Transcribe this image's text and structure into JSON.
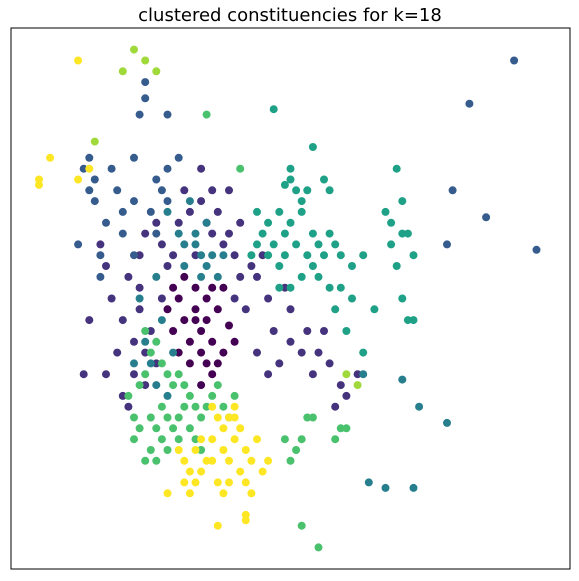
{
  "chart_data": {
    "type": "scatter",
    "title": "clustered constituencies for k=18",
    "xlabel": "",
    "ylabel": "",
    "xlim": [
      0,
      100
    ],
    "ylim": [
      0,
      100
    ],
    "grid": false,
    "axis_ticks": false,
    "palette": [
      "#440154",
      "#46337e",
      "#365c8d",
      "#277f8e",
      "#1fa187",
      "#4ac16d",
      "#9fda3a",
      "#fde725"
    ],
    "series": [
      {
        "color": "#440154",
        "points": [
          [
            30,
            50
          ],
          [
            31,
            46
          ],
          [
            33,
            48
          ],
          [
            34,
            44
          ],
          [
            35,
            46
          ],
          [
            36,
            42
          ],
          [
            32,
            42
          ],
          [
            29,
            44
          ],
          [
            37,
            48
          ],
          [
            38,
            40
          ],
          [
            39,
            45
          ],
          [
            35,
            50
          ],
          [
            33,
            52
          ],
          [
            31,
            54
          ],
          [
            36,
            52
          ],
          [
            34,
            40
          ],
          [
            32,
            38
          ],
          [
            30,
            40
          ],
          [
            28,
            48
          ],
          [
            38,
            52
          ],
          [
            36,
            36
          ],
          [
            34,
            34
          ],
          [
            40,
            42
          ],
          [
            37,
            38
          ],
          [
            33,
            46
          ],
          [
            29,
            52
          ],
          [
            35,
            38
          ]
        ]
      },
      {
        "color": "#46337e",
        "points": [
          [
            20,
            46
          ],
          [
            22,
            42
          ],
          [
            23,
            48
          ],
          [
            25,
            44
          ],
          [
            24,
            40
          ],
          [
            26,
            38
          ],
          [
            24,
            34
          ],
          [
            22,
            36
          ],
          [
            18,
            50
          ],
          [
            17,
            56
          ],
          [
            16,
            60
          ],
          [
            21,
            54
          ],
          [
            23,
            52
          ],
          [
            27,
            60
          ],
          [
            29,
            58
          ],
          [
            30,
            64
          ],
          [
            32,
            66
          ],
          [
            34,
            68
          ],
          [
            36,
            70
          ],
          [
            37,
            66
          ],
          [
            39,
            62
          ],
          [
            40,
            58
          ],
          [
            41,
            54
          ],
          [
            38,
            60
          ],
          [
            36,
            62
          ],
          [
            31,
            70
          ],
          [
            34,
            74
          ],
          [
            35,
            64
          ],
          [
            39,
            70
          ],
          [
            40,
            50
          ],
          [
            42,
            48
          ],
          [
            44,
            40
          ],
          [
            46,
            36
          ],
          [
            47,
            44
          ],
          [
            48,
            38
          ],
          [
            50,
            42
          ],
          [
            52,
            40
          ],
          [
            54,
            36
          ],
          [
            55,
            40
          ],
          [
            57,
            38
          ],
          [
            59,
            34
          ],
          [
            60,
            32
          ],
          [
            62,
            36
          ],
          [
            53,
            44
          ],
          [
            56,
            44
          ],
          [
            58,
            30
          ],
          [
            50,
            48
          ],
          [
            44,
            54
          ],
          [
            14,
            46
          ],
          [
            13,
            36
          ],
          [
            17,
            36
          ],
          [
            20,
            32
          ],
          [
            19,
            40
          ],
          [
            23,
            58
          ],
          [
            26,
            64
          ],
          [
            28,
            56
          ],
          [
            33,
            58
          ],
          [
            41,
            64
          ],
          [
            43,
            56
          ],
          [
            46,
            50
          ],
          [
            49,
            52
          ],
          [
            45,
            58
          ],
          [
            24,
            62
          ],
          [
            27,
            50
          ],
          [
            21,
            30
          ]
        ]
      },
      {
        "color": "#365c8d",
        "points": [
          [
            90,
            94
          ],
          [
            82,
            86
          ],
          [
            79,
            70
          ],
          [
            85,
            65
          ],
          [
            78,
            60
          ],
          [
            94,
            59
          ],
          [
            24,
            90
          ],
          [
            24,
            87
          ],
          [
            28,
            84
          ],
          [
            23,
            84
          ],
          [
            22,
            76
          ],
          [
            26,
            72
          ],
          [
            28,
            74
          ],
          [
            30,
            76
          ],
          [
            27,
            70
          ],
          [
            22,
            68
          ],
          [
            20,
            66
          ],
          [
            25,
            66
          ],
          [
            26,
            62
          ],
          [
            20,
            62
          ],
          [
            28,
            68
          ],
          [
            14,
            70
          ],
          [
            15,
            72
          ],
          [
            16,
            58
          ],
          [
            17,
            64
          ],
          [
            15,
            68
          ],
          [
            14,
            76
          ],
          [
            13,
            74
          ],
          [
            18,
            74
          ],
          [
            19,
            70
          ],
          [
            12,
            60
          ],
          [
            22,
            58
          ],
          [
            16,
            54
          ]
        ]
      },
      {
        "color": "#277f8e",
        "points": [
          [
            32,
            68
          ],
          [
            33,
            62
          ],
          [
            34,
            58
          ],
          [
            35,
            56
          ],
          [
            37,
            54
          ],
          [
            34,
            54
          ],
          [
            30,
            62
          ],
          [
            28,
            66
          ],
          [
            31,
            60
          ],
          [
            26,
            54
          ],
          [
            27,
            46
          ],
          [
            29,
            40
          ],
          [
            24,
            42
          ],
          [
            25,
            38
          ],
          [
            22,
            38
          ],
          [
            26,
            34
          ],
          [
            28,
            32
          ],
          [
            35,
            64
          ],
          [
            38,
            58
          ],
          [
            36,
            58
          ],
          [
            33,
            60
          ],
          [
            31,
            56
          ],
          [
            23,
            50
          ],
          [
            73,
            30
          ],
          [
            78,
            27
          ],
          [
            64,
            16
          ],
          [
            67,
            15
          ],
          [
            72,
            15
          ],
          [
            70,
            35
          ],
          [
            63,
            36
          ]
        ]
      },
      {
        "color": "#1fa187",
        "points": [
          [
            47,
            85
          ],
          [
            49,
            71
          ],
          [
            50,
            74
          ],
          [
            51,
            70
          ],
          [
            52,
            68
          ],
          [
            52,
            66
          ],
          [
            50,
            64
          ],
          [
            49,
            62
          ],
          [
            51,
            60
          ],
          [
            53,
            58
          ],
          [
            54,
            62
          ],
          [
            55,
            60
          ],
          [
            56,
            58
          ],
          [
            57,
            62
          ],
          [
            58,
            60
          ],
          [
            54,
            56
          ],
          [
            55,
            54
          ],
          [
            52,
            54
          ],
          [
            50,
            52
          ],
          [
            48,
            56
          ],
          [
            49,
            58
          ],
          [
            47,
            60
          ],
          [
            45,
            62
          ],
          [
            44,
            66
          ],
          [
            48,
            52
          ],
          [
            46,
            58
          ],
          [
            56,
            72
          ],
          [
            57,
            70
          ],
          [
            54,
            78
          ],
          [
            53,
            70
          ],
          [
            59,
            58
          ],
          [
            61,
            56
          ],
          [
            63,
            58
          ],
          [
            68,
            64
          ],
          [
            69,
            74
          ],
          [
            70,
            68
          ],
          [
            70,
            62
          ],
          [
            69,
            56
          ],
          [
            70,
            50
          ],
          [
            71,
            46
          ],
          [
            72,
            46
          ],
          [
            68,
            60
          ],
          [
            71,
            62
          ],
          [
            72,
            58
          ],
          [
            67,
            66
          ],
          [
            65,
            48
          ],
          [
            63,
            40
          ],
          [
            61,
            50
          ],
          [
            60,
            44
          ],
          [
            58,
            48
          ],
          [
            59,
            52
          ],
          [
            57,
            52
          ],
          [
            50,
            72
          ],
          [
            44,
            60
          ],
          [
            43,
            58
          ],
          [
            46,
            64
          ],
          [
            48,
            66
          ]
        ]
      },
      {
        "color": "#4ac16d",
        "points": [
          [
            35,
            84
          ],
          [
            41,
            74
          ],
          [
            24,
            44
          ],
          [
            25,
            40
          ],
          [
            26,
            42
          ],
          [
            27,
            38
          ],
          [
            28,
            36
          ],
          [
            29,
            34
          ],
          [
            30,
            36
          ],
          [
            31,
            34
          ],
          [
            32,
            32
          ],
          [
            33,
            30
          ],
          [
            34,
            28
          ],
          [
            35,
            30
          ],
          [
            36,
            32
          ],
          [
            37,
            34
          ],
          [
            38,
            30
          ],
          [
            39,
            28
          ],
          [
            40,
            32
          ],
          [
            24,
            36
          ],
          [
            23,
            34
          ],
          [
            22,
            28
          ],
          [
            23,
            26
          ],
          [
            25,
            28
          ],
          [
            26,
            26
          ],
          [
            27,
            24
          ],
          [
            28,
            22
          ],
          [
            29,
            26
          ],
          [
            30,
            28
          ],
          [
            31,
            30
          ],
          [
            32,
            26
          ],
          [
            26,
            20
          ],
          [
            25,
            22
          ],
          [
            24,
            20
          ],
          [
            27,
            30
          ],
          [
            28,
            28
          ],
          [
            21,
            32
          ],
          [
            22,
            24
          ],
          [
            30,
            24
          ],
          [
            33,
            24
          ],
          [
            34,
            22
          ],
          [
            53,
            28
          ],
          [
            54,
            28
          ],
          [
            58,
            24
          ],
          [
            59,
            26
          ],
          [
            52,
            24
          ],
          [
            51,
            22
          ],
          [
            60,
            26
          ],
          [
            50,
            20
          ],
          [
            49,
            24
          ],
          [
            52,
            8
          ],
          [
            55,
            4
          ]
        ]
      },
      {
        "color": "#9fda3a",
        "points": [
          [
            22,
            96
          ],
          [
            24,
            94
          ],
          [
            20,
            92
          ],
          [
            26,
            92
          ],
          [
            15,
            79
          ],
          [
            60,
            36
          ],
          [
            62,
            34
          ]
        ]
      },
      {
        "color": "#fde725",
        "points": [
          [
            12,
            94
          ],
          [
            7,
            76
          ],
          [
            12,
            72
          ],
          [
            5,
            71
          ],
          [
            5,
            72
          ],
          [
            14,
            74
          ],
          [
            36,
            30
          ],
          [
            37,
            28
          ],
          [
            38,
            26
          ],
          [
            39,
            28
          ],
          [
            40,
            30
          ],
          [
            41,
            26
          ],
          [
            42,
            22
          ],
          [
            43,
            20
          ],
          [
            44,
            24
          ],
          [
            45,
            18
          ],
          [
            46,
            20
          ],
          [
            39,
            20
          ],
          [
            38,
            22
          ],
          [
            40,
            24
          ],
          [
            41,
            18
          ],
          [
            42,
            16
          ],
          [
            43,
            14
          ],
          [
            36,
            24
          ],
          [
            35,
            20
          ],
          [
            34,
            18
          ],
          [
            33,
            16
          ],
          [
            32,
            18
          ],
          [
            31,
            20
          ],
          [
            30,
            22
          ],
          [
            31,
            16
          ],
          [
            32,
            14
          ],
          [
            33,
            22
          ],
          [
            36,
            20
          ],
          [
            37,
            16
          ],
          [
            38,
            14
          ],
          [
            39,
            16
          ],
          [
            34,
            24
          ],
          [
            28,
            14
          ],
          [
            42,
            10
          ],
          [
            42,
            9
          ],
          [
            37,
            8
          ],
          [
            40,
            28
          ]
        ]
      }
    ]
  }
}
